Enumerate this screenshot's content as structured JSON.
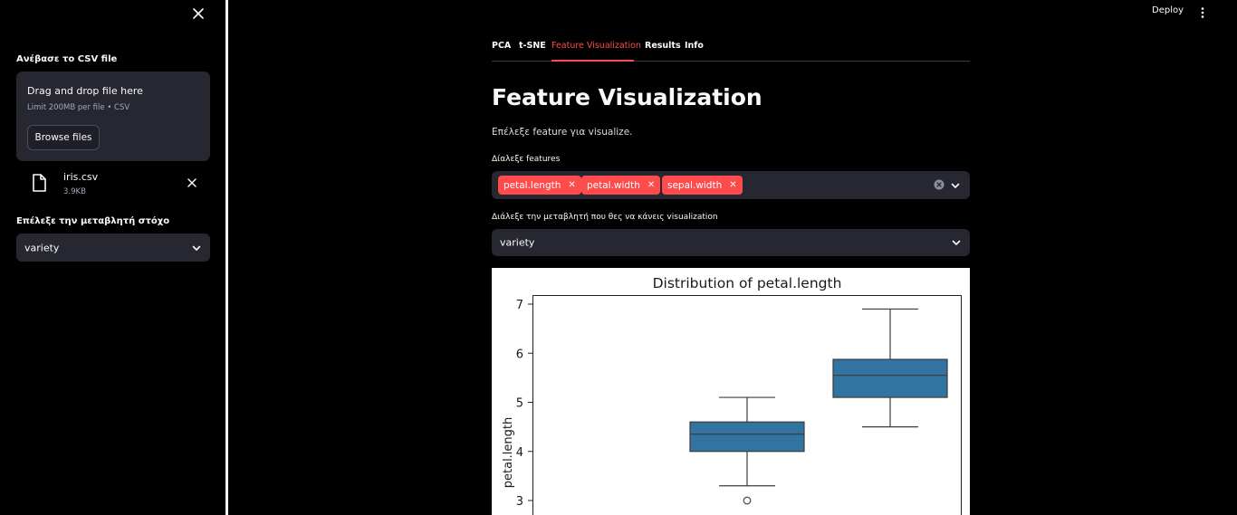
{
  "sidebar": {
    "upload_label": "Ανέβασε το CSV file",
    "uploader": {
      "title": "Drag and drop file here",
      "limit": "Limit 200MB per file • CSV",
      "browse_label": "Browse files"
    },
    "file": {
      "name": "iris.csv",
      "size": "3.9KB"
    },
    "target_label": "Επέλεξε την μεταβλητή στόχο",
    "target_value": "variety"
  },
  "header": {
    "deploy_label": "Deploy"
  },
  "tabs": [
    {
      "label": "PCA"
    },
    {
      "label": "t-SNE"
    },
    {
      "label": "Feature Visualization",
      "active": true
    },
    {
      "label": "Results"
    },
    {
      "label": "Info"
    }
  ],
  "main": {
    "title": "Feature Visualization",
    "caption": "Επέλεξε feature για visualize.",
    "features_label": "Δίαλεξε features",
    "features": [
      "petal.length",
      "petal.width",
      "sepal.width"
    ],
    "viz_label": "Διάλεξε την μεταβλητή που θες να κάνεις visualization",
    "viz_value": "variety"
  },
  "colors": {
    "accent": "#ff4b4b",
    "box": "#3274a1",
    "panel": "#262730"
  },
  "chart_data": {
    "type": "box",
    "title": "Distribution of petal.length",
    "xlabel": "",
    "ylabel": "petal.length",
    "yticks": [
      3,
      4,
      5,
      6,
      7
    ],
    "boxes": [
      {
        "whisker_low": 3.3,
        "q1": 4.0,
        "median": 4.35,
        "q3": 4.6,
        "whisker_high": 5.1,
        "outliers": [
          3.0
        ]
      },
      {
        "whisker_low": 4.5,
        "q1": 5.1,
        "median": 5.55,
        "q3": 5.875,
        "whisker_high": 6.9,
        "outliers": []
      }
    ]
  }
}
